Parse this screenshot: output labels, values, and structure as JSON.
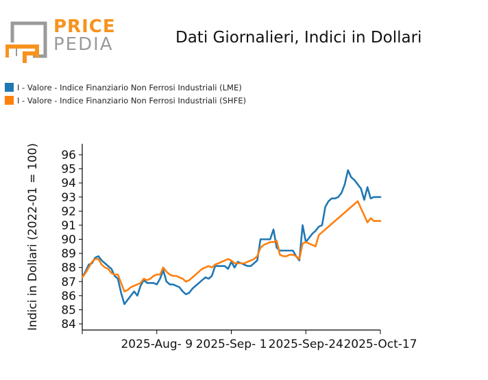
{
  "logo": {
    "line1": "PRICE",
    "line2": "PEDIA",
    "orange": "#f7931e",
    "gray": "#9a9a9a"
  },
  "chart_data": {
    "type": "line",
    "title": "Dati Giornalieri, Indici in Dollari",
    "xlabel": "",
    "ylabel": "Indici in Dollari (2022-01 = 100)",
    "ylim": [
      84,
      96
    ],
    "yticks": [
      84,
      85,
      86,
      87,
      88,
      89,
      90,
      91,
      92,
      93,
      94,
      95,
      96
    ],
    "xtick_labels": [
      "2025-Aug- 9",
      "2025-Sep- 1",
      "2025-Sep-24",
      "2025-Oct-17"
    ],
    "xlim": [
      "2025-Jul-17",
      "2025-Oct-17"
    ],
    "legend_position": "top-left",
    "series": [
      {
        "name": "I - Valore - Indice Finanziario Non Ferrosi Industriali (LME)",
        "color": "#1f77b4",
        "x": [
          "2025-Jul-17",
          "2025-Jul-18",
          "2025-Jul-19",
          "2025-Jul-20",
          "2025-Jul-21",
          "2025-Jul-22",
          "2025-Jul-23",
          "2025-Jul-24",
          "2025-Jul-25",
          "2025-Jul-26",
          "2025-Jul-27",
          "2025-Jul-28",
          "2025-Jul-29",
          "2025-Jul-30",
          "2025-Jul-31",
          "2025-Aug-01",
          "2025-Aug-02",
          "2025-Aug-03",
          "2025-Aug-04",
          "2025-Aug-05",
          "2025-Aug-06",
          "2025-Aug-07",
          "2025-Aug-08",
          "2025-Aug-09",
          "2025-Aug-10",
          "2025-Aug-11",
          "2025-Aug-12",
          "2025-Aug-13",
          "2025-Aug-14",
          "2025-Aug-15",
          "2025-Aug-16",
          "2025-Aug-17",
          "2025-Aug-18",
          "2025-Aug-19",
          "2025-Aug-20",
          "2025-Aug-21",
          "2025-Aug-22",
          "2025-Aug-23",
          "2025-Aug-24",
          "2025-Aug-25",
          "2025-Aug-26",
          "2025-Aug-27",
          "2025-Aug-28",
          "2025-Aug-29",
          "2025-Aug-30",
          "2025-Aug-31",
          "2025-Sep-01",
          "2025-Sep-02",
          "2025-Sep-03",
          "2025-Sep-04",
          "2025-Sep-05",
          "2025-Sep-06",
          "2025-Sep-07",
          "2025-Sep-08",
          "2025-Sep-09",
          "2025-Sep-10",
          "2025-Sep-11",
          "2025-Sep-12",
          "2025-Sep-13",
          "2025-Sep-14",
          "2025-Sep-15",
          "2025-Sep-16",
          "2025-Sep-17",
          "2025-Sep-18",
          "2025-Sep-19",
          "2025-Sep-20",
          "2025-Sep-21",
          "2025-Sep-22",
          "2025-Sep-23",
          "2025-Sep-24",
          "2025-Sep-25",
          "2025-Sep-26",
          "2025-Sep-27",
          "2025-Sep-28",
          "2025-Sep-29",
          "2025-Sep-30",
          "2025-Oct-01",
          "2025-Oct-02",
          "2025-Oct-03",
          "2025-Oct-04",
          "2025-Oct-05",
          "2025-Oct-06",
          "2025-Oct-07",
          "2025-Oct-08",
          "2025-Oct-09",
          "2025-Oct-10",
          "2025-Oct-11",
          "2025-Oct-12",
          "2025-Oct-13",
          "2025-Oct-14",
          "2025-Oct-15",
          "2025-Oct-16",
          "2025-Oct-17"
        ],
        "values": [
          87.3,
          87.7,
          88.2,
          88.3,
          88.7,
          88.8,
          88.5,
          88.3,
          88.1,
          87.9,
          87.4,
          87.2,
          86.2,
          85.4,
          85.7,
          86.0,
          86.3,
          86.0,
          86.7,
          87.1,
          86.9,
          86.9,
          86.9,
          86.8,
          87.2,
          87.8,
          87.0,
          86.8,
          86.8,
          86.7,
          86.6,
          86.3,
          86.1,
          86.2,
          86.5,
          86.7,
          86.9,
          87.1,
          87.3,
          87.2,
          87.4,
          88.1,
          88.1,
          88.1,
          88.1,
          87.9,
          88.4,
          88.0,
          88.4,
          88.3,
          88.2,
          88.1,
          88.1,
          88.3,
          88.5,
          90.0,
          90.0,
          90.0,
          90.0,
          90.7,
          89.4,
          89.2,
          89.2,
          89.2,
          89.2,
          89.2,
          88.8,
          88.5,
          91.0,
          89.8,
          90.1,
          90.4,
          90.6,
          90.9,
          91.0,
          92.3,
          92.7,
          92.9,
          92.9,
          93.0,
          93.3,
          93.9,
          94.9,
          94.4,
          94.2,
          93.9,
          93.6,
          92.8,
          93.7,
          92.9,
          93.0,
          93.0,
          93.0
        ]
      },
      {
        "name": "I - Valore - Indice Finanziario Non Ferrosi Industriali (SHFE)",
        "color": "#ff7f0e",
        "x": [
          "2025-Jul-17",
          "2025-Jul-18",
          "2025-Jul-19",
          "2025-Jul-20",
          "2025-Jul-21",
          "2025-Jul-22",
          "2025-Jul-23",
          "2025-Jul-24",
          "2025-Jul-25",
          "2025-Jul-26",
          "2025-Jul-27",
          "2025-Jul-28",
          "2025-Jul-29",
          "2025-Jul-30",
          "2025-Jul-31",
          "2025-Aug-01",
          "2025-Aug-02",
          "2025-Aug-03",
          "2025-Aug-04",
          "2025-Aug-05",
          "2025-Aug-06",
          "2025-Aug-07",
          "2025-Aug-08",
          "2025-Aug-09",
          "2025-Aug-10",
          "2025-Aug-11",
          "2025-Aug-12",
          "2025-Aug-13",
          "2025-Aug-14",
          "2025-Aug-15",
          "2025-Aug-16",
          "2025-Aug-17",
          "2025-Aug-18",
          "2025-Aug-19",
          "2025-Aug-20",
          "2025-Aug-21",
          "2025-Aug-22",
          "2025-Aug-23",
          "2025-Aug-24",
          "2025-Aug-25",
          "2025-Aug-26",
          "2025-Aug-27",
          "2025-Aug-28",
          "2025-Aug-29",
          "2025-Aug-30",
          "2025-Aug-31",
          "2025-Sep-01",
          "2025-Sep-02",
          "2025-Sep-03",
          "2025-Sep-04",
          "2025-Sep-05",
          "2025-Sep-06",
          "2025-Sep-07",
          "2025-Sep-08",
          "2025-Sep-09",
          "2025-Sep-10",
          "2025-Sep-11",
          "2025-Sep-12",
          "2025-Sep-13",
          "2025-Sep-14",
          "2025-Sep-15",
          "2025-Sep-16",
          "2025-Sep-17",
          "2025-Sep-18",
          "2025-Sep-19",
          "2025-Sep-20",
          "2025-Sep-21",
          "2025-Sep-22",
          "2025-Sep-23",
          "2025-Sep-24",
          "2025-Sep-25",
          "2025-Sep-26",
          "2025-Sep-27",
          "2025-Sep-28",
          "2025-Sep-29",
          "2025-Sep-30",
          "2025-Oct-01",
          "2025-Oct-10",
          "2025-Oct-11",
          "2025-Oct-12",
          "2025-Oct-13",
          "2025-Oct-14",
          "2025-Oct-15",
          "2025-Oct-16",
          "2025-Oct-17"
        ],
        "values": [
          87.3,
          87.6,
          88.0,
          88.4,
          88.6,
          88.6,
          88.2,
          88.0,
          87.9,
          87.6,
          87.5,
          87.5,
          86.9,
          86.3,
          86.4,
          86.6,
          86.7,
          86.8,
          86.9,
          87.2,
          87.1,
          87.2,
          87.4,
          87.5,
          87.5,
          88.0,
          87.7,
          87.5,
          87.4,
          87.4,
          87.3,
          87.2,
          87.0,
          87.1,
          87.3,
          87.5,
          87.7,
          87.9,
          88.0,
          88.1,
          88.0,
          88.2,
          88.3,
          88.4,
          88.5,
          88.6,
          88.5,
          88.3,
          88.3,
          88.3,
          88.3,
          88.4,
          88.5,
          88.6,
          88.8,
          89.4,
          89.6,
          89.7,
          89.8,
          89.8,
          89.9,
          88.9,
          88.8,
          88.8,
          88.9,
          88.9,
          88.8,
          88.6,
          89.7,
          89.8,
          89.7,
          89.6,
          89.5,
          90.3,
          90.5,
          90.7,
          90.9,
          92.7,
          92.2,
          91.7,
          91.2,
          91.5,
          91.3,
          91.3,
          91.3
        ]
      }
    ]
  }
}
